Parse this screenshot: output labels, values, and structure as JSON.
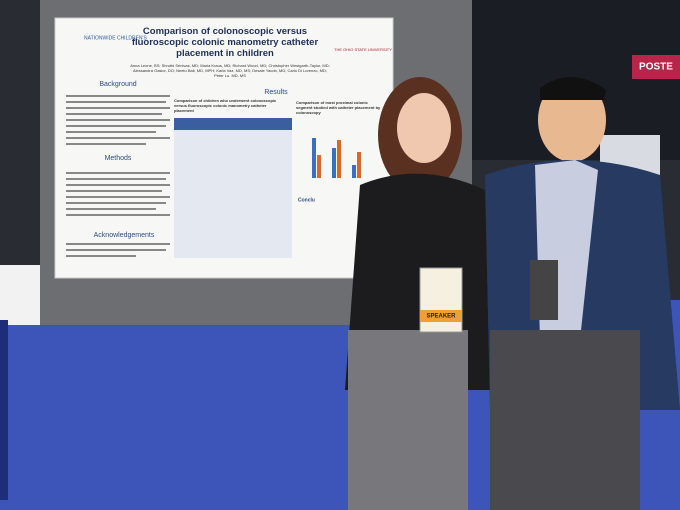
{
  "poster": {
    "logo": "NATIONWIDE CHILDREN'S",
    "title": "Comparison of colonoscopic versus fluoroscopic colonic manometry catheter placement in children",
    "university": "THE OHIO STATE UNIVERSITY",
    "authors": "Anna Leone, BS; Shruthi Srinivas, MD; Maria Kraus, MD; Richard Wood, MD; Christopher Westgarth-Taylor, MD; Alessandra Gasior, DO; Neetu Bali, MD, MPH; Karla Vaz, MD, MS; Desale Yacob, MD; Carlo Di Lorenzo, MD; Peter Lu, MD, MS",
    "sections": [
      "Background",
      "Methods",
      "Acknowledgements",
      "Results",
      "Conclu"
    ],
    "table_title": "Comparison of children who underwent colonoscopic versus fluoroscopic colonic manometry catheter placement",
    "chart_title": "Comparison of most proximal colonic segment studied with catheter placement by colonoscopy"
  },
  "badge": "SPEAKER",
  "sign": "POSTE"
}
